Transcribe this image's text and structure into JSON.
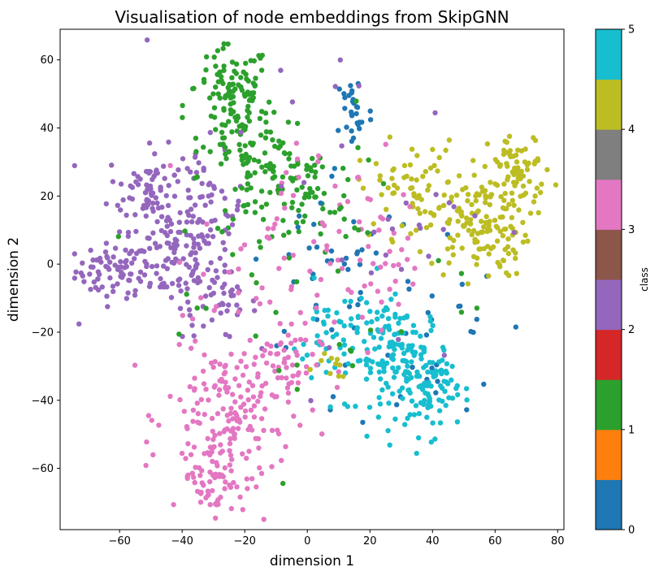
{
  "chart_data": {
    "type": "scatter",
    "title": "Visualisation of node embeddings from SkipGNN",
    "xlabel": "dimension 1",
    "ylabel": "dimension 2",
    "xlim": [
      -79,
      82
    ],
    "ylim": [
      -78,
      69
    ],
    "xticks": [
      -60,
      -40,
      -20,
      0,
      20,
      40,
      60,
      80
    ],
    "yticks": [
      -60,
      -40,
      -20,
      0,
      20,
      40,
      60
    ],
    "grid": false,
    "colorbar": {
      "label": "class",
      "range": [
        0,
        5
      ],
      "ticks": [
        0,
        1,
        2,
        3,
        4,
        5
      ],
      "colors": [
        "#1f77b4",
        "#ff7f0e",
        "#2ca02c",
        "#d62728",
        "#9467bd",
        "#8c564b",
        "#e377c2",
        "#7f7f7f",
        "#bcbd22",
        "#17becf"
      ]
    },
    "class_colors": {
      "0": "#1f77b4",
      "1": "#2ca02c",
      "2": "#9467bd",
      "3": "#e377c2",
      "4": "#bcbd22",
      "5": "#17becf"
    },
    "clusters": [
      {
        "class": 2,
        "cx": -62,
        "cy": -2,
        "sx": 6,
        "sy": 4,
        "n": 70
      },
      {
        "class": 2,
        "cx": -44,
        "cy": 2,
        "sx": 7,
        "sy": 7,
        "n": 90
      },
      {
        "class": 2,
        "cx": -50,
        "cy": 22,
        "sx": 7,
        "sy": 6,
        "n": 80
      },
      {
        "class": 2,
        "cx": -32,
        "cy": 16,
        "sx": 6,
        "sy": 8,
        "n": 60
      },
      {
        "class": 2,
        "cx": -28,
        "cy": -12,
        "sx": 6,
        "sy": 5,
        "n": 40
      },
      {
        "class": 1,
        "cx": -24,
        "cy": 52,
        "sx": 6,
        "sy": 6,
        "n": 90
      },
      {
        "class": 1,
        "cx": -20,
        "cy": 38,
        "sx": 7,
        "sy": 5,
        "n": 60
      },
      {
        "class": 1,
        "cx": -12,
        "cy": 25,
        "sx": 10,
        "sy": 7,
        "n": 80
      },
      {
        "class": 1,
        "cx": 0,
        "cy": 18,
        "sx": 8,
        "sy": 8,
        "n": 40
      },
      {
        "class": 0,
        "cx": 15,
        "cy": 45,
        "sx": 3,
        "sy": 6,
        "n": 30
      },
      {
        "class": 0,
        "cx": 10,
        "cy": 0,
        "sx": 14,
        "sy": 15,
        "n": 40
      },
      {
        "class": 0,
        "cx": 38,
        "cy": -20,
        "sx": 12,
        "sy": 16,
        "n": 30
      },
      {
        "class": 4,
        "cx": 55,
        "cy": 12,
        "sx": 8,
        "sy": 8,
        "n": 150
      },
      {
        "class": 4,
        "cx": 68,
        "cy": 28,
        "sx": 5,
        "sy": 5,
        "n": 60
      },
      {
        "class": 4,
        "cx": 32,
        "cy": 22,
        "sx": 8,
        "sy": 7,
        "n": 60
      },
      {
        "class": 5,
        "cx": 30,
        "cy": -28,
        "sx": 8,
        "sy": 8,
        "n": 150
      },
      {
        "class": 5,
        "cx": 40,
        "cy": -38,
        "sx": 4,
        "sy": 6,
        "n": 60
      },
      {
        "class": 5,
        "cx": 12,
        "cy": -22,
        "sx": 9,
        "sy": 8,
        "n": 60
      },
      {
        "class": 3,
        "cx": -25,
        "cy": -45,
        "sx": 10,
        "sy": 12,
        "n": 180
      },
      {
        "class": 3,
        "cx": -30,
        "cy": -63,
        "sx": 5,
        "sy": 5,
        "n": 50
      },
      {
        "class": 3,
        "cx": -10,
        "cy": -30,
        "sx": 7,
        "sy": 6,
        "n": 50
      },
      {
        "class": 3,
        "cx": -5,
        "cy": 5,
        "sx": 15,
        "sy": 15,
        "n": 60
      },
      {
        "class": 3,
        "cx": 25,
        "cy": 0,
        "sx": 10,
        "sy": 12,
        "n": 30
      },
      {
        "class": 2,
        "cx": 10,
        "cy": 20,
        "sx": 25,
        "sy": 25,
        "n": 40
      },
      {
        "class": 1,
        "cx": 5,
        "cy": -5,
        "sx": 25,
        "sy": 25,
        "n": 40
      },
      {
        "class": 4,
        "cx": 5,
        "cy": -30,
        "sx": 5,
        "sy": 3,
        "n": 10
      }
    ]
  }
}
